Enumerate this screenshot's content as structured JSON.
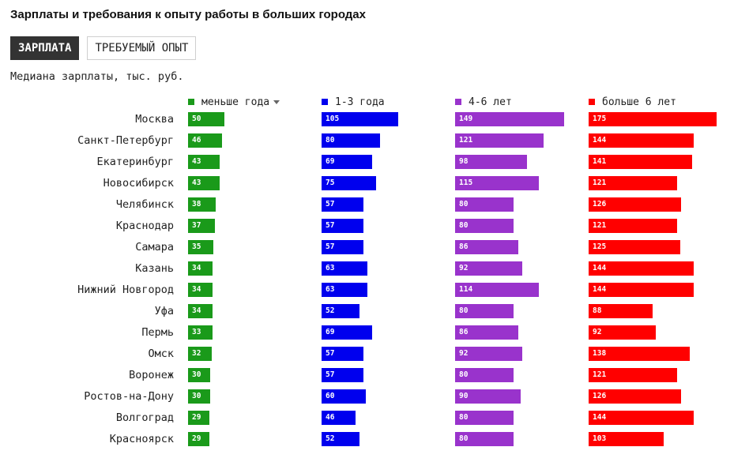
{
  "title": "Зарплаты и требования к опыту работы в больших городах",
  "tabs": {
    "salary": "ЗАРПЛАТА",
    "experience": "ТРЕБУЕМЫЙ ОПЫТ",
    "active": "salary"
  },
  "subtitle": "Медиана зарплаты, тыс. руб.",
  "colors": {
    "tab_active_bg": "#333333"
  },
  "chart_data": {
    "type": "bar",
    "categories": [
      "Москва",
      "Санкт-Петербург",
      "Екатеринбург",
      "Новосибирск",
      "Челябинск",
      "Краснодар",
      "Самара",
      "Казань",
      "Нижний Новгород",
      "Уфа",
      "Пермь",
      "Омск",
      "Воронеж",
      "Ростов-на-Дону",
      "Волгоград",
      "Красноярск"
    ],
    "series": [
      {
        "name": "меньше года",
        "color": "#1a9a1a",
        "sort_icon": "sort-down-icon",
        "values": [
          50,
          46,
          43,
          43,
          38,
          37,
          35,
          34,
          34,
          34,
          33,
          32,
          30,
          30,
          29,
          29
        ]
      },
      {
        "name": "1-3 года",
        "color": "#0000ee",
        "values": [
          105,
          80,
          69,
          75,
          57,
          57,
          57,
          63,
          63,
          52,
          69,
          57,
          57,
          60,
          46,
          52
        ]
      },
      {
        "name": "4-6 лет",
        "color": "#9933cc",
        "values": [
          149,
          121,
          98,
          115,
          80,
          80,
          86,
          92,
          114,
          80,
          86,
          92,
          80,
          90,
          80,
          80
        ]
      },
      {
        "name": "больше 6 лет",
        "color": "#ff0000",
        "values": [
          175,
          144,
          141,
          121,
          126,
          121,
          125,
          144,
          144,
          88,
          92,
          138,
          121,
          126,
          144,
          103
        ]
      }
    ],
    "xlim": [
      0,
      175
    ],
    "data_labels": true,
    "legend_position": "top"
  }
}
